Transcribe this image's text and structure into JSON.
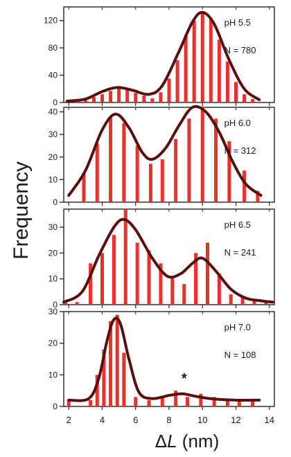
{
  "chart_data": [
    {
      "type": "bar",
      "annotation_ph": "pH 5.5",
      "annotation_n": "N = 780",
      "ylim": [
        0,
        140
      ],
      "yticks": [
        0,
        40,
        80,
        120
      ],
      "ytick_labels": [
        "0",
        "40",
        "80",
        "120"
      ],
      "xlim": [
        1.7,
        14.3
      ],
      "x": [
        2.6,
        3.0,
        3.5,
        4.0,
        4.5,
        5.0,
        5.5,
        6.0,
        6.5,
        7.0,
        7.5,
        8.0,
        8.5,
        9.0,
        9.5,
        10.0,
        10.5,
        11.0,
        11.5,
        12.0,
        12.5,
        13.0
      ],
      "values": [
        2,
        4,
        8,
        12,
        17,
        22,
        21,
        14,
        10,
        6,
        15,
        35,
        62,
        98,
        120,
        130,
        122,
        92,
        60,
        30,
        12,
        5
      ],
      "fit": [
        [
          1.9,
          2
        ],
        [
          3.0,
          5
        ],
        [
          4.0,
          16
        ],
        [
          4.9,
          22
        ],
        [
          5.8,
          18
        ],
        [
          6.8,
          12
        ],
        [
          7.6,
          25
        ],
        [
          8.6,
          75
        ],
        [
          9.4,
          118
        ],
        [
          10.0,
          132
        ],
        [
          10.7,
          115
        ],
        [
          11.6,
          62
        ],
        [
          12.5,
          20
        ],
        [
          13.4,
          4
        ]
      ]
    },
    {
      "type": "bar",
      "annotation_ph": "pH 6.0",
      "annotation_n": "N = 312",
      "ylim": [
        0,
        42
      ],
      "yticks": [
        0,
        10,
        20,
        30,
        40
      ],
      "ytick_labels": [
        "0",
        "10",
        "20",
        "30",
        "40"
      ],
      "xlim": [
        1.7,
        14.3
      ],
      "x": [
        2.9,
        3.7,
        4.5,
        5.3,
        6.1,
        6.9,
        7.6,
        8.4,
        9.2,
        10.0,
        10.8,
        11.6,
        12.5,
        13.3
      ],
      "values": [
        13,
        26,
        38,
        35,
        25,
        17,
        19,
        28,
        37,
        42,
        37,
        27,
        14,
        5
      ],
      "fit": [
        [
          2.0,
          3
        ],
        [
          3.0,
          14
        ],
        [
          4.0,
          32
        ],
        [
          4.8,
          39
        ],
        [
          5.6,
          33
        ],
        [
          6.4,
          22
        ],
        [
          7.0,
          19
        ],
        [
          7.8,
          24
        ],
        [
          8.6,
          34
        ],
        [
          9.4,
          42
        ],
        [
          10.2,
          40
        ],
        [
          11.0,
          31
        ],
        [
          11.8,
          18
        ],
        [
          12.6,
          8
        ],
        [
          13.5,
          3
        ]
      ]
    },
    {
      "type": "bar",
      "annotation_ph": "pH 6.5",
      "annotation_n": "N = 241",
      "ylim": [
        0,
        37
      ],
      "yticks": [
        0,
        10,
        20,
        30
      ],
      "ytick_labels": [
        "0",
        "10",
        "20",
        "30"
      ],
      "xlim": [
        1.7,
        14.3
      ],
      "x": [
        1.8,
        2.5,
        3.3,
        4.0,
        4.7,
        5.4,
        6.1,
        6.8,
        7.5,
        8.2,
        8.9,
        9.6,
        10.3,
        11.0,
        11.7,
        12.4,
        13.1,
        13.8
      ],
      "values": [
        1,
        1,
        16,
        20,
        27,
        37,
        24,
        21,
        16,
        11,
        8,
        20,
        24,
        12,
        4,
        3,
        2,
        1
      ],
      "fit": [
        [
          1.7,
          1
        ],
        [
          2.8,
          5
        ],
        [
          3.8,
          19
        ],
        [
          4.7,
          30
        ],
        [
          5.3,
          33
        ],
        [
          6.0,
          29
        ],
        [
          7.0,
          18
        ],
        [
          7.9,
          11
        ],
        [
          8.7,
          12
        ],
        [
          9.4,
          16
        ],
        [
          10.0,
          18
        ],
        [
          10.8,
          13
        ],
        [
          11.7,
          6
        ],
        [
          12.6,
          2.5
        ],
        [
          13.5,
          1.5
        ],
        [
          14.2,
          1
        ]
      ]
    },
    {
      "type": "bar",
      "annotation_ph": "pH 7.0",
      "annotation_n": "N = 108",
      "asterisk": "*",
      "ylim": [
        0,
        30
      ],
      "yticks": [
        0,
        10,
        20,
        30
      ],
      "ytick_labels": [
        "0",
        "10",
        "20",
        "30"
      ],
      "xlim": [
        1.7,
        14.3
      ],
      "x": [
        2.0,
        3.3,
        3.7,
        4.1,
        4.5,
        4.9,
        5.3,
        6.0,
        6.8,
        7.6,
        8.4,
        9.1,
        9.9,
        10.7,
        11.5,
        12.2,
        13.0
      ],
      "values": [
        2,
        2,
        10,
        18,
        27,
        29,
        17,
        3,
        2,
        3,
        5,
        3,
        4,
        3,
        2,
        2,
        2
      ],
      "fit": [
        [
          2.0,
          2
        ],
        [
          3.2,
          2.5
        ],
        [
          3.8,
          9
        ],
        [
          4.3,
          21
        ],
        [
          4.7,
          27.5
        ],
        [
          5.1,
          26
        ],
        [
          5.6,
          15
        ],
        [
          6.2,
          4.5
        ],
        [
          7.0,
          2.5
        ],
        [
          8.0,
          3.5
        ],
        [
          8.8,
          4
        ],
        [
          9.6,
          3.2
        ],
        [
          10.6,
          2.4
        ],
        [
          12.0,
          2
        ],
        [
          13.4,
          2
        ]
      ]
    }
  ],
  "axes": {
    "ylabel": "Frequency",
    "xlabel_delta": "Δ",
    "xlabel_var": "L",
    "xlabel_unit": " (nm)",
    "xticks": [
      2,
      4,
      6,
      8,
      10,
      12,
      14
    ],
    "xtick_labels": [
      "2",
      "4",
      "6",
      "8",
      "10",
      "12",
      "14"
    ]
  },
  "colors": {
    "bars": "#e8322b",
    "fit": "#5a0f0f",
    "axis": "#222222",
    "text": "#1a1a1a"
  }
}
